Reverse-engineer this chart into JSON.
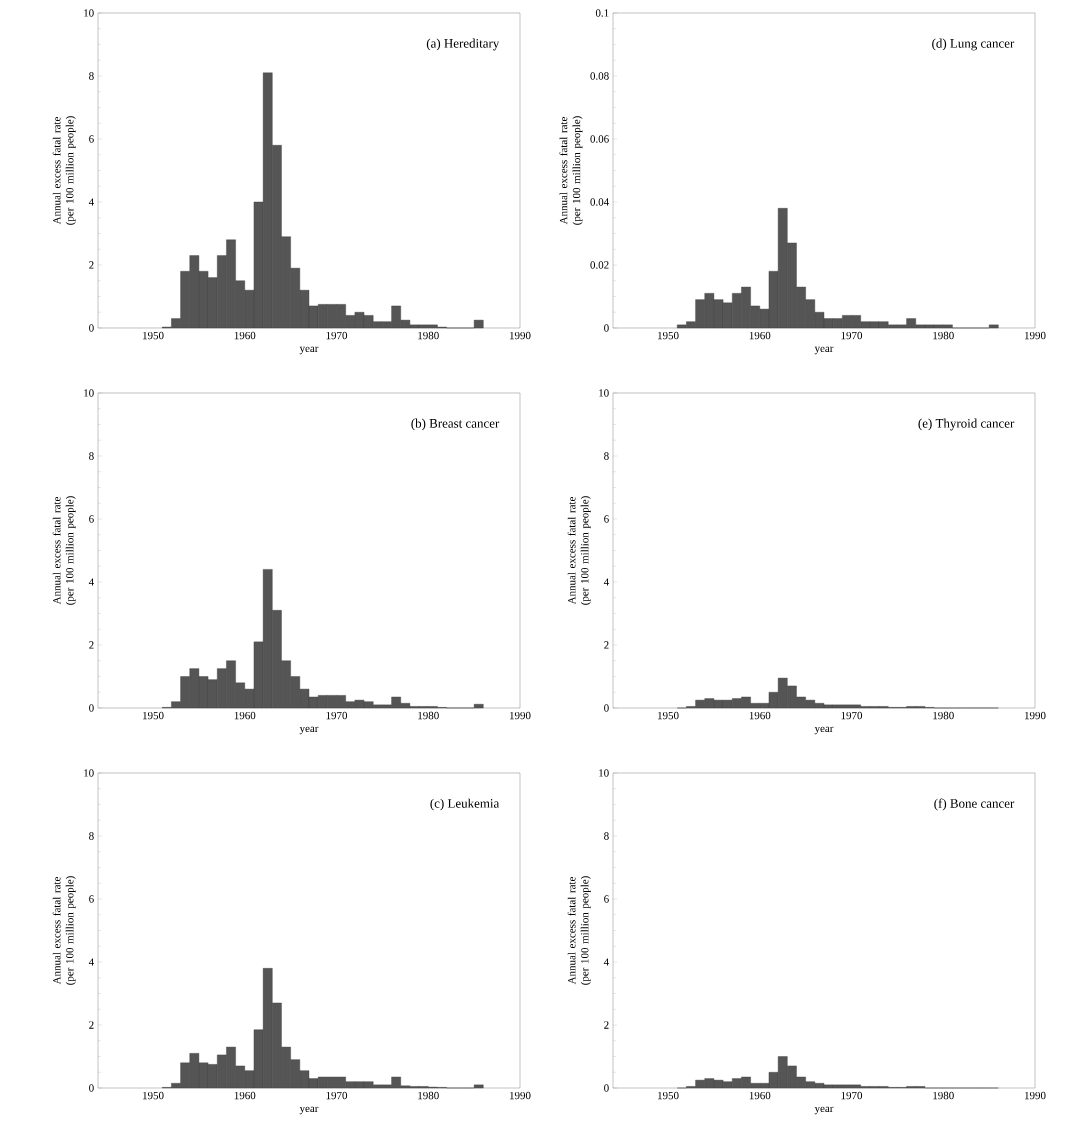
{
  "chart_data": [
    {
      "type": "histogram",
      "title": "(a) Hereditary",
      "xlabel": "year",
      "ylabel": "Annual excess fatal rate (per 100 million people)",
      "color": "#555555",
      "bins": [
        1951,
        1952,
        1953,
        1954,
        1955,
        1956,
        1957,
        1958,
        1959,
        1960,
        1961,
        1962,
        1963,
        1964,
        1965,
        1966,
        1967,
        1968,
        1969,
        1970,
        1971,
        1972,
        1973,
        1974,
        1975,
        1976,
        1977,
        1978,
        1979,
        1980,
        1981,
        1982,
        1983,
        1984,
        1985,
        1986
      ],
      "values": [
        0.03,
        0.3,
        1.8,
        2.3,
        1.8,
        1.6,
        2.3,
        2.8,
        1.5,
        1.2,
        4.0,
        8.1,
        5.8,
        2.9,
        1.9,
        1.2,
        0.7,
        0.75,
        0.75,
        0.75,
        0.4,
        0.5,
        0.4,
        0.2,
        0.2,
        0.7,
        0.25,
        0.1,
        0.1,
        0.1,
        0.03,
        0,
        0,
        0,
        0.25
      ],
      "xlim": [
        1944,
        1990
      ],
      "xticks": [
        1950,
        1960,
        1970,
        1980,
        1990
      ],
      "ylim": [
        0,
        10
      ],
      "yticks": [
        0,
        2,
        4,
        6,
        8,
        10
      ]
    },
    {
      "type": "histogram",
      "title": "(d) Lung cancer",
      "xlabel": "year",
      "ylabel": "Annual excess fatal rate (per 100 million people)",
      "color": "#555555",
      "bins": [
        1951,
        1952,
        1953,
        1954,
        1955,
        1956,
        1957,
        1958,
        1959,
        1960,
        1961,
        1962,
        1963,
        1964,
        1965,
        1966,
        1967,
        1968,
        1969,
        1970,
        1971,
        1972,
        1973,
        1974,
        1975,
        1976,
        1977,
        1978,
        1979,
        1980,
        1981,
        1982,
        1983,
        1984,
        1985,
        1986
      ],
      "values": [
        0.001,
        0.002,
        0.009,
        0.011,
        0.009,
        0.008,
        0.011,
        0.013,
        0.007,
        0.006,
        0.018,
        0.038,
        0.027,
        0.013,
        0.009,
        0.005,
        0.003,
        0.003,
        0.004,
        0.004,
        0.002,
        0.002,
        0.002,
        0.001,
        0.001,
        0.003,
        0.001,
        0.001,
        0.001,
        0.001,
        0,
        0,
        0,
        0,
        0.001
      ],
      "xlim": [
        1944,
        1990
      ],
      "xticks": [
        1950,
        1960,
        1970,
        1980,
        1990
      ],
      "ylim": [
        0,
        0.1
      ],
      "yticks": [
        0,
        0.02,
        0.04,
        0.06,
        0.08,
        0.1
      ]
    },
    {
      "type": "histogram",
      "title": "(b) Breast cancer",
      "xlabel": "year",
      "ylabel": "Annual excess fatal rate (per 100 million people)",
      "color": "#555555",
      "bins": [
        1951,
        1952,
        1953,
        1954,
        1955,
        1956,
        1957,
        1958,
        1959,
        1960,
        1961,
        1962,
        1963,
        1964,
        1965,
        1966,
        1967,
        1968,
        1969,
        1970,
        1971,
        1972,
        1973,
        1974,
        1975,
        1976,
        1977,
        1978,
        1979,
        1980,
        1981,
        1982,
        1983,
        1984,
        1985,
        1986
      ],
      "values": [
        0.02,
        0.2,
        1.0,
        1.25,
        1.0,
        0.9,
        1.25,
        1.5,
        0.8,
        0.6,
        2.1,
        4.4,
        3.1,
        1.5,
        1.0,
        0.6,
        0.35,
        0.4,
        0.4,
        0.4,
        0.2,
        0.25,
        0.2,
        0.1,
        0.1,
        0.35,
        0.15,
        0.05,
        0.05,
        0.05,
        0.02,
        0,
        0,
        0,
        0.12
      ],
      "xlim": [
        1944,
        1990
      ],
      "xticks": [
        1950,
        1960,
        1970,
        1980,
        1990
      ],
      "ylim": [
        0,
        10
      ],
      "yticks": [
        0,
        2,
        4,
        6,
        8,
        10
      ]
    },
    {
      "type": "histogram",
      "title": "(e) Thyroid cancer",
      "xlabel": "year",
      "ylabel": "Annual excess fatal rate (per 100 million people)",
      "color": "#555555",
      "bins": [
        1951,
        1952,
        1953,
        1954,
        1955,
        1956,
        1957,
        1958,
        1959,
        1960,
        1961,
        1962,
        1963,
        1964,
        1965,
        1966,
        1967,
        1968,
        1969,
        1970,
        1971,
        1972,
        1973,
        1974,
        1975,
        1976,
        1977,
        1978,
        1979,
        1980,
        1981,
        1982,
        1983,
        1984,
        1985,
        1986
      ],
      "values": [
        0,
        0.05,
        0.25,
        0.3,
        0.25,
        0.25,
        0.3,
        0.35,
        0.15,
        0.15,
        0.5,
        0.95,
        0.7,
        0.35,
        0.25,
        0.15,
        0.1,
        0.1,
        0.1,
        0.1,
        0.05,
        0.05,
        0.05,
        0.02,
        0.02,
        0.05,
        0.05,
        0.02,
        0,
        0,
        0,
        0,
        0,
        0,
        0
      ],
      "xlim": [
        1944,
        1990
      ],
      "xticks": [
        1950,
        1960,
        1970,
        1980,
        1990
      ],
      "ylim": [
        0,
        10
      ],
      "yticks": [
        0,
        2,
        4,
        6,
        8,
        10
      ]
    },
    {
      "type": "histogram",
      "title": "(c) Leukemia",
      "xlabel": "year",
      "ylabel": "Annual excess fatal rate (per 100 million people)",
      "color": "#555555",
      "bins": [
        1951,
        1952,
        1953,
        1954,
        1955,
        1956,
        1957,
        1958,
        1959,
        1960,
        1961,
        1962,
        1963,
        1964,
        1965,
        1966,
        1967,
        1968,
        1969,
        1970,
        1971,
        1972,
        1973,
        1974,
        1975,
        1976,
        1977,
        1978,
        1979,
        1980,
        1981,
        1982,
        1983,
        1984,
        1985,
        1986
      ],
      "values": [
        0.02,
        0.15,
        0.8,
        1.1,
        0.8,
        0.75,
        1.05,
        1.3,
        0.7,
        0.55,
        1.85,
        3.8,
        2.7,
        1.3,
        0.9,
        0.55,
        0.3,
        0.35,
        0.35,
        0.35,
        0.2,
        0.2,
        0.2,
        0.1,
        0.1,
        0.35,
        0.07,
        0.05,
        0.05,
        0.03,
        0.02,
        0,
        0,
        0,
        0.1
      ],
      "xlim": [
        1944,
        1990
      ],
      "xticks": [
        1950,
        1960,
        1970,
        1980,
        1990
      ],
      "ylim": [
        0,
        10
      ],
      "yticks": [
        0,
        2,
        4,
        6,
        8,
        10
      ]
    },
    {
      "type": "histogram",
      "title": "(f) Bone cancer",
      "xlabel": "year",
      "ylabel": "Annual excess fatal rate (per 100 million people)",
      "color": "#555555",
      "bins": [
        1951,
        1952,
        1953,
        1954,
        1955,
        1956,
        1957,
        1958,
        1959,
        1960,
        1961,
        1962,
        1963,
        1964,
        1965,
        1966,
        1967,
        1968,
        1969,
        1970,
        1971,
        1972,
        1973,
        1974,
        1975,
        1976,
        1977,
        1978,
        1979,
        1980,
        1981,
        1982,
        1983,
        1984,
        1985,
        1986
      ],
      "values": [
        0,
        0.05,
        0.25,
        0.3,
        0.25,
        0.2,
        0.3,
        0.35,
        0.15,
        0.15,
        0.5,
        1.0,
        0.7,
        0.35,
        0.2,
        0.15,
        0.1,
        0.1,
        0.1,
        0.1,
        0.05,
        0.05,
        0.05,
        0.02,
        0.02,
        0.05,
        0.05,
        0,
        0,
        0,
        0,
        0,
        0,
        0,
        0
      ],
      "xlim": [
        1944,
        1990
      ],
      "xticks": [
        1950,
        1960,
        1970,
        1980,
        1990
      ],
      "ylim": [
        0,
        10
      ],
      "yticks": [
        0,
        2,
        4,
        6,
        8,
        10
      ]
    }
  ]
}
